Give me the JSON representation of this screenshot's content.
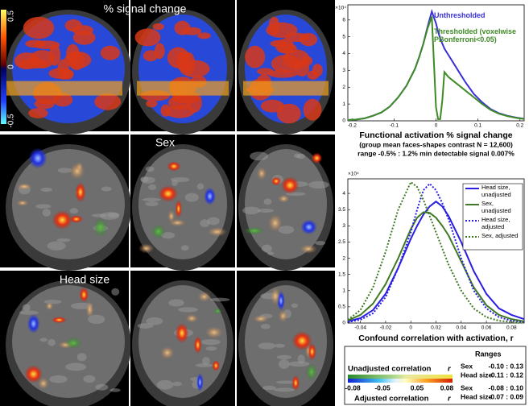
{
  "figure_panels": [
    {
      "label": "% signal change",
      "colorbar_ticks": [
        "0.5",
        "0",
        "-0.5"
      ]
    },
    {
      "label": "Sex"
    },
    {
      "label": "Head size"
    }
  ],
  "chart_data": [
    {
      "type": "line",
      "title": "Functional activation % signal change",
      "subtitle_lines": [
        "(group mean faces-shapes contrast  N = 12,600)",
        "range -0.5% : 1.2%   min detectable signal 0.007%"
      ],
      "y_multiplier": "×10⁴",
      "xlim": [
        -0.21,
        0.21
      ],
      "xticks": [
        -0.2,
        -0.1,
        0,
        0.1,
        0.2
      ],
      "ylim": [
        0,
        6.9
      ],
      "yticks": [
        0,
        1,
        2,
        3,
        4,
        5,
        6
      ],
      "legend": "upper right",
      "legend_box": false,
      "x": [
        -0.21,
        -0.19,
        -0.17,
        -0.15,
        -0.13,
        -0.11,
        -0.09,
        -0.07,
        -0.05,
        -0.04,
        -0.03,
        -0.02,
        -0.01,
        0,
        0.005,
        0.01,
        0.015,
        0.02,
        0.03,
        0.04,
        0.05,
        0.07,
        0.09,
        0.11,
        0.13,
        0.15,
        0.17,
        0.19,
        0.21
      ],
      "series": [
        {
          "name": "Unthresholded",
          "color": "#3a2fd8",
          "dashed": false,
          "values": [
            0.05,
            0.08,
            0.15,
            0.3,
            0.5,
            0.85,
            1.4,
            2.1,
            3.1,
            3.8,
            4.6,
            5.6,
            6.5,
            5.8,
            5.3,
            4.9,
            4.6,
            4.3,
            3.9,
            3.5,
            3.1,
            2.3,
            1.6,
            1.1,
            0.7,
            0.45,
            0.3,
            0.2,
            0.12
          ]
        },
        {
          "name": "Thresholded (voxelwise PBonferroni<0.05)",
          "color": "#3f8a26",
          "dashed": false,
          "values": [
            0.05,
            0.08,
            0.15,
            0.3,
            0.5,
            0.85,
            1.4,
            2.1,
            3.1,
            3.8,
            4.6,
            5.5,
            6.2,
            0.8,
            0.1,
            0.1,
            1.2,
            2.9,
            2.6,
            2.4,
            2.2,
            1.8,
            1.4,
            1.0,
            0.65,
            0.42,
            0.28,
            0.18,
            0.11
          ]
        }
      ]
    },
    {
      "type": "line",
      "x_label": "Confound correlation with activation, r",
      "y_multiplier": "×10⁴",
      "xlim": [
        -0.05,
        0.09
      ],
      "xticks": [
        -0.04,
        -0.02,
        0,
        0.02,
        0.04,
        0.06,
        0.08
      ],
      "ylim": [
        0,
        4.45
      ],
      "yticks": [
        0,
        0.5,
        1,
        1.5,
        2,
        2.5,
        3,
        3.5,
        4
      ],
      "legend": "upper right",
      "legend_box": true,
      "x": [
        -0.05,
        -0.04,
        -0.03,
        -0.02,
        -0.01,
        0,
        0.005,
        0.01,
        0.015,
        0.02,
        0.025,
        0.03,
        0.04,
        0.05,
        0.06,
        0.07,
        0.08,
        0.09
      ],
      "series": [
        {
          "name": "Head size, unadjusted",
          "color": "#2a1fe0",
          "dashed": false,
          "values": [
            0.05,
            0.15,
            0.4,
            0.9,
            1.7,
            2.6,
            3.0,
            3.35,
            3.6,
            3.75,
            3.6,
            3.3,
            2.5,
            1.6,
            0.9,
            0.45,
            0.25,
            0.12
          ]
        },
        {
          "name": "Sex, unadjusted",
          "color": "#3f7a22",
          "dashed": false,
          "values": [
            0.08,
            0.25,
            0.6,
            1.2,
            2.0,
            2.9,
            3.25,
            3.42,
            3.4,
            3.25,
            3.0,
            2.7,
            1.9,
            1.1,
            0.55,
            0.25,
            0.12,
            0.05
          ]
        },
        {
          "name": "Head size, adjusted",
          "color": "#2a1fe0",
          "dashed": true,
          "values": [
            0.03,
            0.1,
            0.3,
            0.8,
            1.7,
            2.8,
            3.5,
            4.1,
            4.3,
            4.1,
            3.7,
            3.2,
            2.0,
            1.0,
            0.45,
            0.18,
            0.07,
            0.03
          ]
        },
        {
          "name": "Sex, adjusted",
          "color": "#3f7a22",
          "dashed": true,
          "values": [
            0.1,
            0.4,
            1.1,
            2.2,
            3.5,
            4.35,
            4.2,
            3.8,
            3.3,
            2.8,
            2.3,
            1.8,
            1.0,
            0.45,
            0.18,
            0.07,
            0.03,
            0.01
          ]
        }
      ]
    }
  ],
  "correlation_colorbar": {
    "unadjusted_label": "Unadjusted correlation",
    "adjusted_label": "Adjusted correlation",
    "symbol": "r",
    "ticks": [
      "-0.08",
      "-0.05",
      "0.05",
      "0.08"
    ]
  },
  "ranges": {
    "title": "Ranges",
    "groups": [
      [
        {
          "name": "Sex",
          "range": "-0.10 : 0.13"
        },
        {
          "name": "Head size",
          "range": "-0.11 : 0.12"
        }
      ],
      [
        {
          "name": "Sex",
          "range": "-0.08 : 0.10"
        },
        {
          "name": "Head size",
          "range": "-0.07 : 0.09"
        }
      ]
    ]
  }
}
